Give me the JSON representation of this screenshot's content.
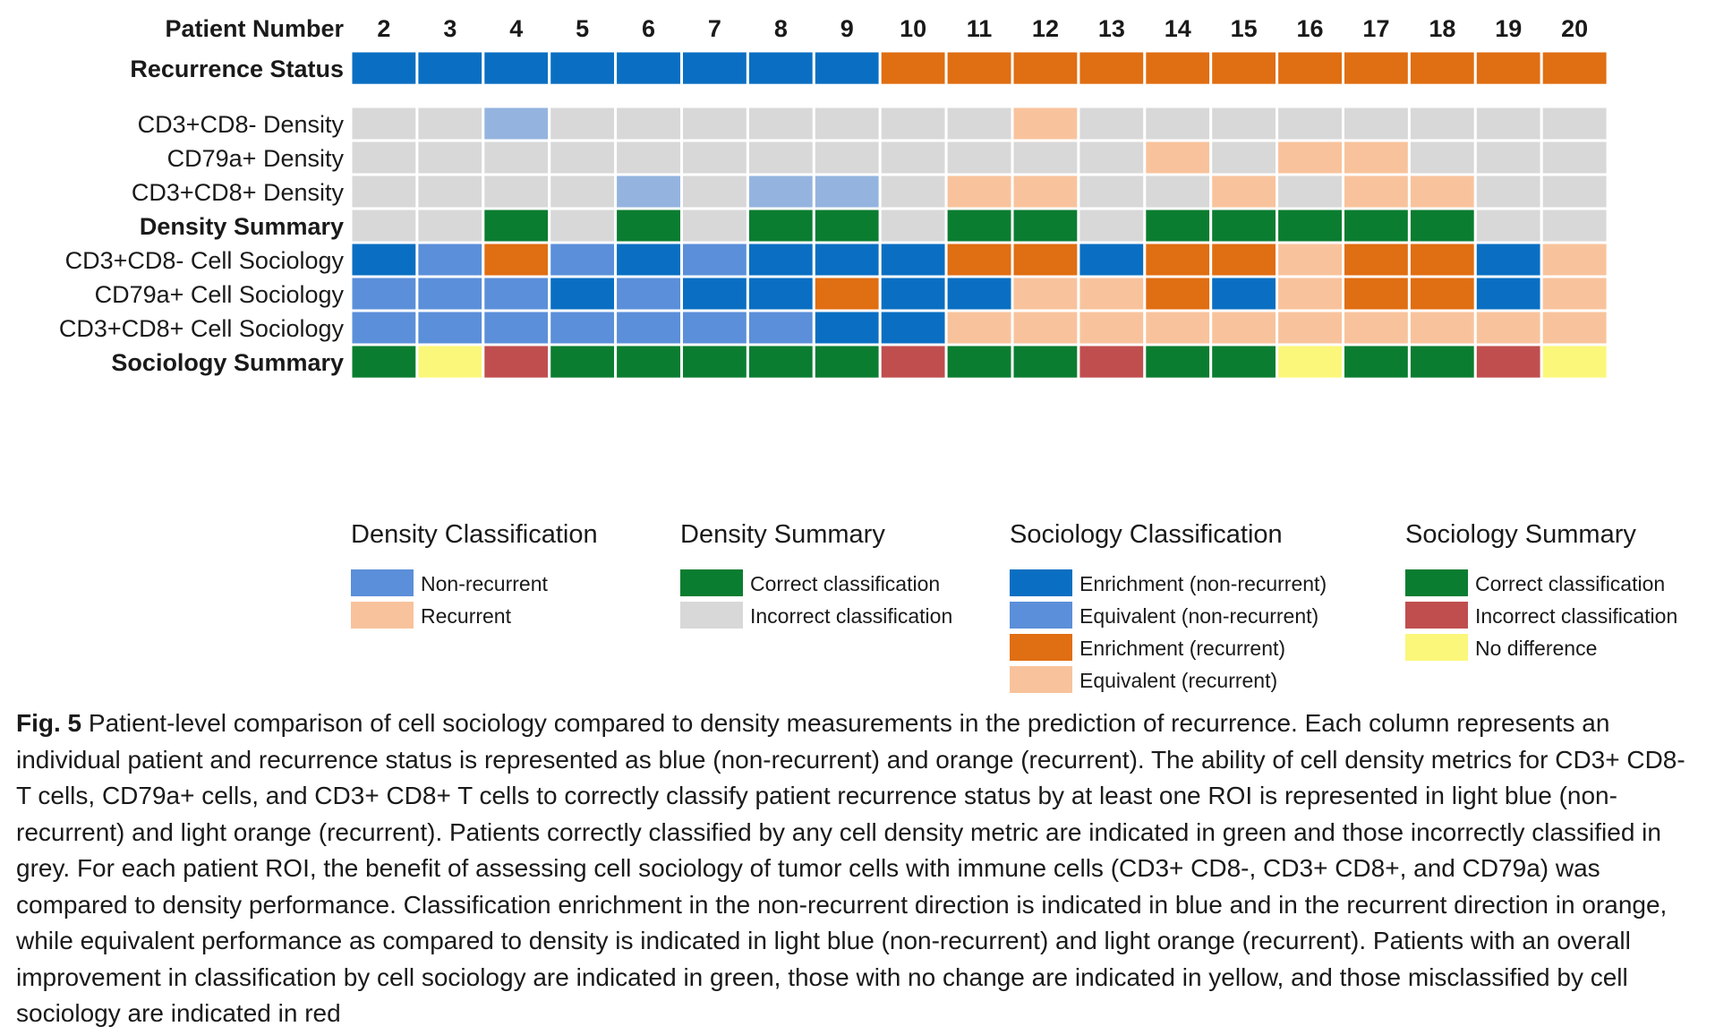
{
  "chart_data": {
    "type": "heatmap",
    "header_label": "Patient Number",
    "patients": [
      "2",
      "3",
      "4",
      "5",
      "6",
      "7",
      "8",
      "9",
      "10",
      "11",
      "12",
      "13",
      "14",
      "15",
      "16",
      "17",
      "18",
      "19",
      "20"
    ],
    "rows": [
      {
        "label": "Recurrence Status",
        "bold": true,
        "group": 0,
        "values": [
          "B",
          "B",
          "B",
          "B",
          "B",
          "B",
          "B",
          "B",
          "O",
          "O",
          "O",
          "O",
          "O",
          "O",
          "O",
          "O",
          "O",
          "O",
          "O"
        ]
      },
      {
        "label": "CD3+CD8- Density",
        "bold": false,
        "group": 1,
        "values": [
          "G",
          "G",
          "LB",
          "G",
          "G",
          "G",
          "G",
          "G",
          "G",
          "G",
          "LO",
          "G",
          "G",
          "G",
          "G",
          "G",
          "G",
          "G",
          "G"
        ]
      },
      {
        "label": "CD79a+ Density",
        "bold": false,
        "group": 1,
        "values": [
          "G",
          "G",
          "G",
          "G",
          "G",
          "G",
          "G",
          "G",
          "G",
          "G",
          "G",
          "G",
          "LO",
          "G",
          "LO",
          "LO",
          "G",
          "G",
          "G"
        ]
      },
      {
        "label": "CD3+CD8+ Density",
        "bold": false,
        "group": 1,
        "values": [
          "G",
          "G",
          "G",
          "G",
          "LB",
          "G",
          "LB",
          "LB",
          "G",
          "LO",
          "LO",
          "G",
          "G",
          "LO",
          "G",
          "LO",
          "LO",
          "G",
          "G"
        ]
      },
      {
        "label": "Density Summary",
        "bold": true,
        "group": 1,
        "values": [
          "G",
          "G",
          "DG",
          "G",
          "DG",
          "G",
          "DG",
          "DG",
          "G",
          "DG",
          "DG",
          "G",
          "DG",
          "DG",
          "DG",
          "DG",
          "DG",
          "G",
          "G"
        ]
      },
      {
        "label": "CD3+CD8- Cell Sociology",
        "bold": false,
        "group": 2,
        "values": [
          "B",
          "MB",
          "O",
          "MB",
          "B",
          "MB",
          "B",
          "B",
          "B",
          "O",
          "O",
          "B",
          "O",
          "O",
          "LO",
          "O",
          "O",
          "B",
          "LO"
        ]
      },
      {
        "label": "CD79a+ Cell Sociology",
        "bold": false,
        "group": 2,
        "values": [
          "MB",
          "MB",
          "MB",
          "B",
          "MB",
          "B",
          "B",
          "O",
          "B",
          "B",
          "LO",
          "LO",
          "O",
          "B",
          "LO",
          "O",
          "O",
          "B",
          "LO"
        ]
      },
      {
        "label": "CD3+CD8+ Cell Sociology",
        "bold": false,
        "group": 2,
        "values": [
          "MB",
          "MB",
          "MB",
          "MB",
          "MB",
          "MB",
          "MB",
          "B",
          "B",
          "LO",
          "LO",
          "LO",
          "LO",
          "LO",
          "LO",
          "LO",
          "LO",
          "LO",
          "LO"
        ]
      },
      {
        "label": "Sociology Summary",
        "bold": true,
        "group": 2,
        "values": [
          "DG",
          "Y",
          "R",
          "DG",
          "DG",
          "DG",
          "DG",
          "DG",
          "R",
          "DG",
          "DG",
          "R",
          "DG",
          "DG",
          "Y",
          "DG",
          "DG",
          "R",
          "Y"
        ]
      }
    ],
    "colors": {
      "B": "#0a6fc2",
      "MB": "#5b8fd9",
      "LB": "#94b4df",
      "O": "#e06e12",
      "LO": "#f8c39c",
      "G": "#d8d8d8",
      "DG": "#0b7d30",
      "R": "#c04e4e",
      "Y": "#fbf77a"
    },
    "legend": [
      {
        "title": "Density Classification",
        "items": [
          {
            "color": "MB",
            "label": "Non-recurrent"
          },
          {
            "color": "LO",
            "label": "Recurrent"
          }
        ]
      },
      {
        "title": "Density Summary",
        "items": [
          {
            "color": "DG",
            "label": "Correct classification"
          },
          {
            "color": "G",
            "label": "Incorrect classification"
          }
        ]
      },
      {
        "title": "Sociology Classification",
        "items": [
          {
            "color": "B",
            "label": "Enrichment (non-recurrent)"
          },
          {
            "color": "MB",
            "label": "Equivalent (non-recurrent)"
          },
          {
            "color": "O",
            "label": "Enrichment (recurrent)"
          },
          {
            "color": "LO",
            "label": "Equivalent (recurrent)"
          }
        ]
      },
      {
        "title": "Sociology Summary",
        "items": [
          {
            "color": "DG",
            "label": "Correct classification"
          },
          {
            "color": "R",
            "label": "Incorrect classification"
          },
          {
            "color": "Y",
            "label": "No difference"
          }
        ]
      }
    ]
  },
  "caption": {
    "label": "Fig. 5",
    "text": "Patient-level comparison of cell sociology compared to density measurements in the prediction of recurrence. Each column represents an individual patient and recurrence status is represented as blue (non-recurrent) and orange (recurrent). The ability of cell density metrics for CD3+ CD8- T cells, CD79a+ cells, and CD3+ CD8+ T cells to correctly classify patient recurrence status by at least one ROI is represented in light blue (non-recurrent) and light orange (recurrent). Patients correctly classified by any cell density metric are indicated in green and those incorrectly classified in grey. For each patient ROI, the benefit of assessing cell sociology of tumor cells with immune cells (CD3+ CD8-, CD3+ CD8+, and CD79a) was compared to density performance. Classification enrichment in the non-recurrent direction is indicated in blue and in the recurrent direction in orange, while equivalent performance as compared to density is indicated in light blue (non-recurrent) and light orange (recurrent). Patients with an overall improvement in classification by cell sociology are indicated in green, those with no change are indicated in yellow, and those misclassified by cell sociology are indicated in red"
  }
}
